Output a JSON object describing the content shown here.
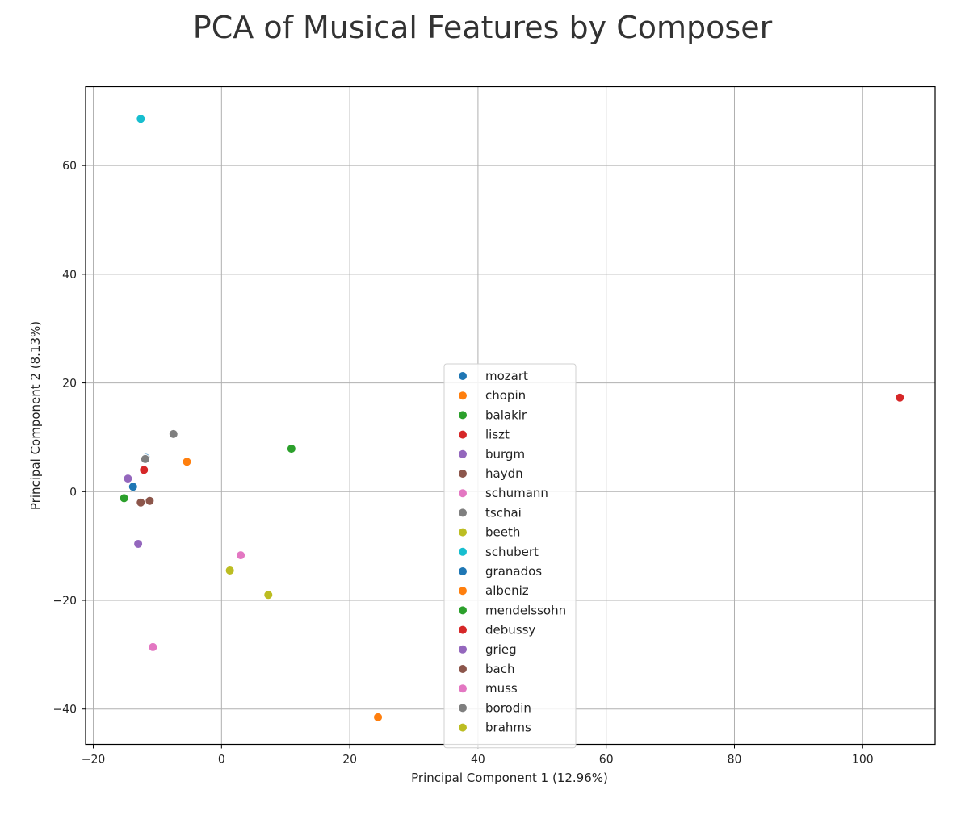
{
  "chart_data": {
    "type": "scatter",
    "title": "PCA of Musical Features by Composer",
    "xlabel": "Principal Component 1 (12.96%)",
    "ylabel": "Principal Component 2 (8.13%)",
    "xlim": [
      -21.2,
      111.3
    ],
    "ylim": [
      -46.5,
      74.5
    ],
    "xticks": [
      -20,
      0,
      20,
      40,
      60,
      80,
      100
    ],
    "yticks": [
      -40,
      -20,
      0,
      20,
      40,
      60
    ],
    "xtick_labels": [
      "−20",
      "0",
      "20",
      "40",
      "60",
      "80",
      "100"
    ],
    "ytick_labels": [
      "−40",
      "−20",
      "0",
      "20",
      "40",
      "60"
    ],
    "grid": true,
    "legend_position": "center",
    "series": [
      {
        "name": "mozart",
        "color": "#1f77b4",
        "points": [
          [
            -13.8,
            0.9
          ]
        ]
      },
      {
        "name": "chopin",
        "color": "#ff7f0e",
        "points": [
          [
            -5.4,
            5.5
          ]
        ]
      },
      {
        "name": "balakir",
        "color": "#2ca02c",
        "points": [
          [
            -15.2,
            -1.2
          ]
        ]
      },
      {
        "name": "liszt",
        "color": "#d62728",
        "points": [
          [
            105.8,
            17.3
          ]
        ]
      },
      {
        "name": "burgm",
        "color": "#9467bd",
        "points": [
          [
            -14.6,
            2.4
          ]
        ]
      },
      {
        "name": "haydn",
        "color": "#8c564b",
        "points": [
          [
            -11.2,
            -1.7
          ]
        ]
      },
      {
        "name": "schumann",
        "color": "#e377c2",
        "points": [
          [
            -10.7,
            -28.6
          ]
        ]
      },
      {
        "name": "tschai",
        "color": "#7f7f7f",
        "points": [
          [
            -7.5,
            10.6
          ]
        ]
      },
      {
        "name": "beeth",
        "color": "#bcbd22",
        "points": [
          [
            7.3,
            -19.0
          ]
        ]
      },
      {
        "name": "schubert",
        "color": "#17becf",
        "points": [
          [
            -12.6,
            68.6
          ]
        ]
      },
      {
        "name": "granados",
        "color": "#1f77b4",
        "points": [
          [
            -11.8,
            6.2
          ]
        ]
      },
      {
        "name": "albeniz",
        "color": "#ff7f0e",
        "points": [
          [
            24.4,
            -41.5
          ]
        ]
      },
      {
        "name": "mendelssohn",
        "color": "#2ca02c",
        "points": [
          [
            10.9,
            7.9
          ]
        ]
      },
      {
        "name": "debussy",
        "color": "#d62728",
        "points": [
          [
            -12.1,
            4.0
          ]
        ]
      },
      {
        "name": "grieg",
        "color": "#9467bd",
        "points": [
          [
            -13.0,
            -9.6
          ]
        ]
      },
      {
        "name": "bach",
        "color": "#8c564b",
        "points": [
          [
            -12.6,
            -2.0
          ]
        ]
      },
      {
        "name": "muss",
        "color": "#e377c2",
        "points": [
          [
            3.0,
            -11.7
          ]
        ]
      },
      {
        "name": "borodin",
        "color": "#7f7f7f",
        "points": [
          [
            -11.9,
            6.0
          ]
        ]
      },
      {
        "name": "brahms",
        "color": "#bcbd22",
        "points": [
          [
            1.3,
            -14.5
          ]
        ]
      }
    ]
  }
}
